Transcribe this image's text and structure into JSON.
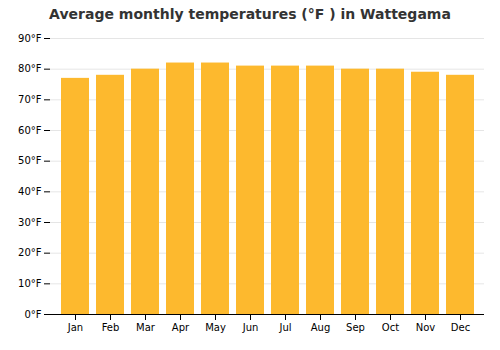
{
  "chart_data": {
    "type": "bar",
    "title": "Average monthly temperatures (°F ) in Wattegama",
    "categories": [
      "Jan",
      "Feb",
      "Mar",
      "Apr",
      "May",
      "Jun",
      "Jul",
      "Aug",
      "Sep",
      "Oct",
      "Nov",
      "Dec"
    ],
    "values": [
      77,
      78,
      80,
      82,
      82,
      81,
      81,
      81,
      80,
      80,
      79,
      78
    ],
    "color": "#FDB92E",
    "ylim": [
      0,
      90
    ],
    "yticks": [
      {
        "value": 0,
        "label": "0°F"
      },
      {
        "value": 10,
        "label": "10°F"
      },
      {
        "value": 20,
        "label": "20°F"
      },
      {
        "value": 30,
        "label": "30°F"
      },
      {
        "value": 40,
        "label": "40°F"
      },
      {
        "value": 50,
        "label": "50°F"
      },
      {
        "value": 60,
        "label": "60°F"
      },
      {
        "value": 70,
        "label": "70°F"
      },
      {
        "value": 80,
        "label": "80°F"
      },
      {
        "value": 90,
        "label": "90°F"
      }
    ],
    "grid": true
  }
}
